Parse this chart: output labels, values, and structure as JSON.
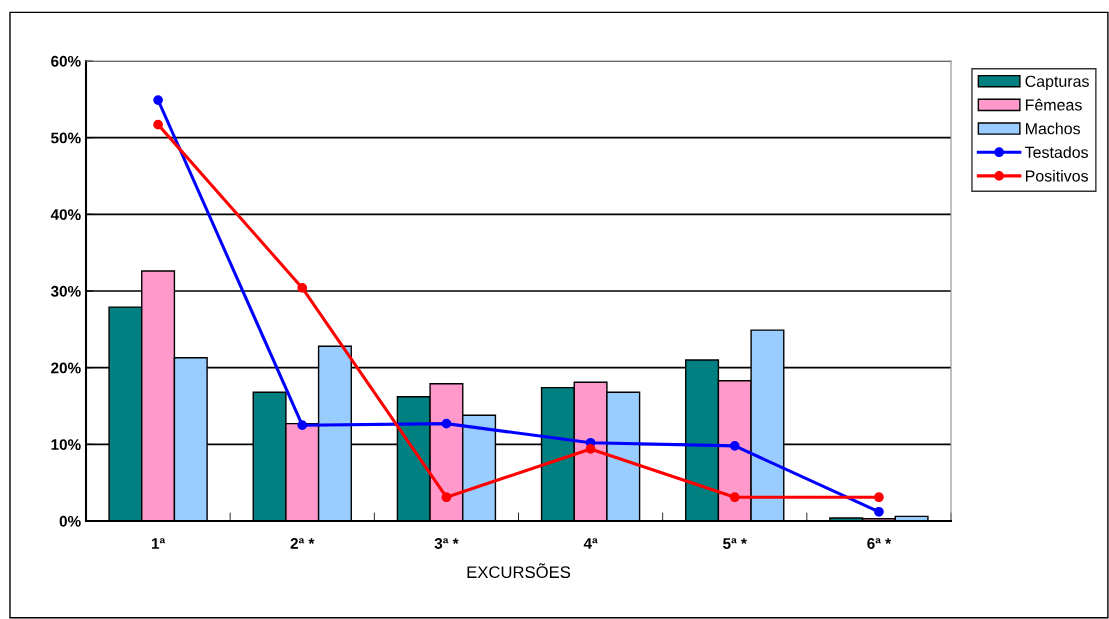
{
  "chart_data": {
    "type": "bar",
    "xlabel": "EXCURSÕES",
    "categories": [
      "1ª",
      "2ª *",
      "3ª *",
      "4ª",
      "5ª *",
      "6ª *"
    ],
    "series": [
      {
        "name": "Capturas",
        "color": "#008080",
        "values": [
          27.9,
          16.8,
          16.2,
          17.4,
          21.0,
          0.4
        ]
      },
      {
        "name": "Fêmeas",
        "color": "#ff99cc",
        "values": [
          32.6,
          12.7,
          17.9,
          18.1,
          18.3,
          0.3
        ]
      },
      {
        "name": "Machos",
        "color": "#99ccff",
        "values": [
          21.3,
          22.8,
          13.8,
          16.8,
          24.9,
          0.6
        ]
      },
      {
        "name": "Testados",
        "type": "line",
        "color": "#0000ff",
        "values": [
          54.9,
          12.5,
          12.7,
          10.2,
          9.8,
          1.2
        ]
      },
      {
        "name": "Positivos",
        "type": "line",
        "color": "#ff0000",
        "values": [
          51.7,
          30.4,
          3.1,
          9.4,
          3.1,
          3.1
        ]
      }
    ],
    "ylim": [
      0,
      60
    ],
    "yticks": [
      {
        "value": 0,
        "label": "0%"
      },
      {
        "value": 10,
        "label": "10%"
      },
      {
        "value": 20,
        "label": "20%"
      },
      {
        "value": 30,
        "label": "30%"
      },
      {
        "value": 40,
        "label": "40%"
      },
      {
        "value": 50,
        "label": "50%"
      },
      {
        "value": 60,
        "label": "60%"
      }
    ],
    "grid": "y",
    "legend": "right",
    "marker": "circle"
  }
}
